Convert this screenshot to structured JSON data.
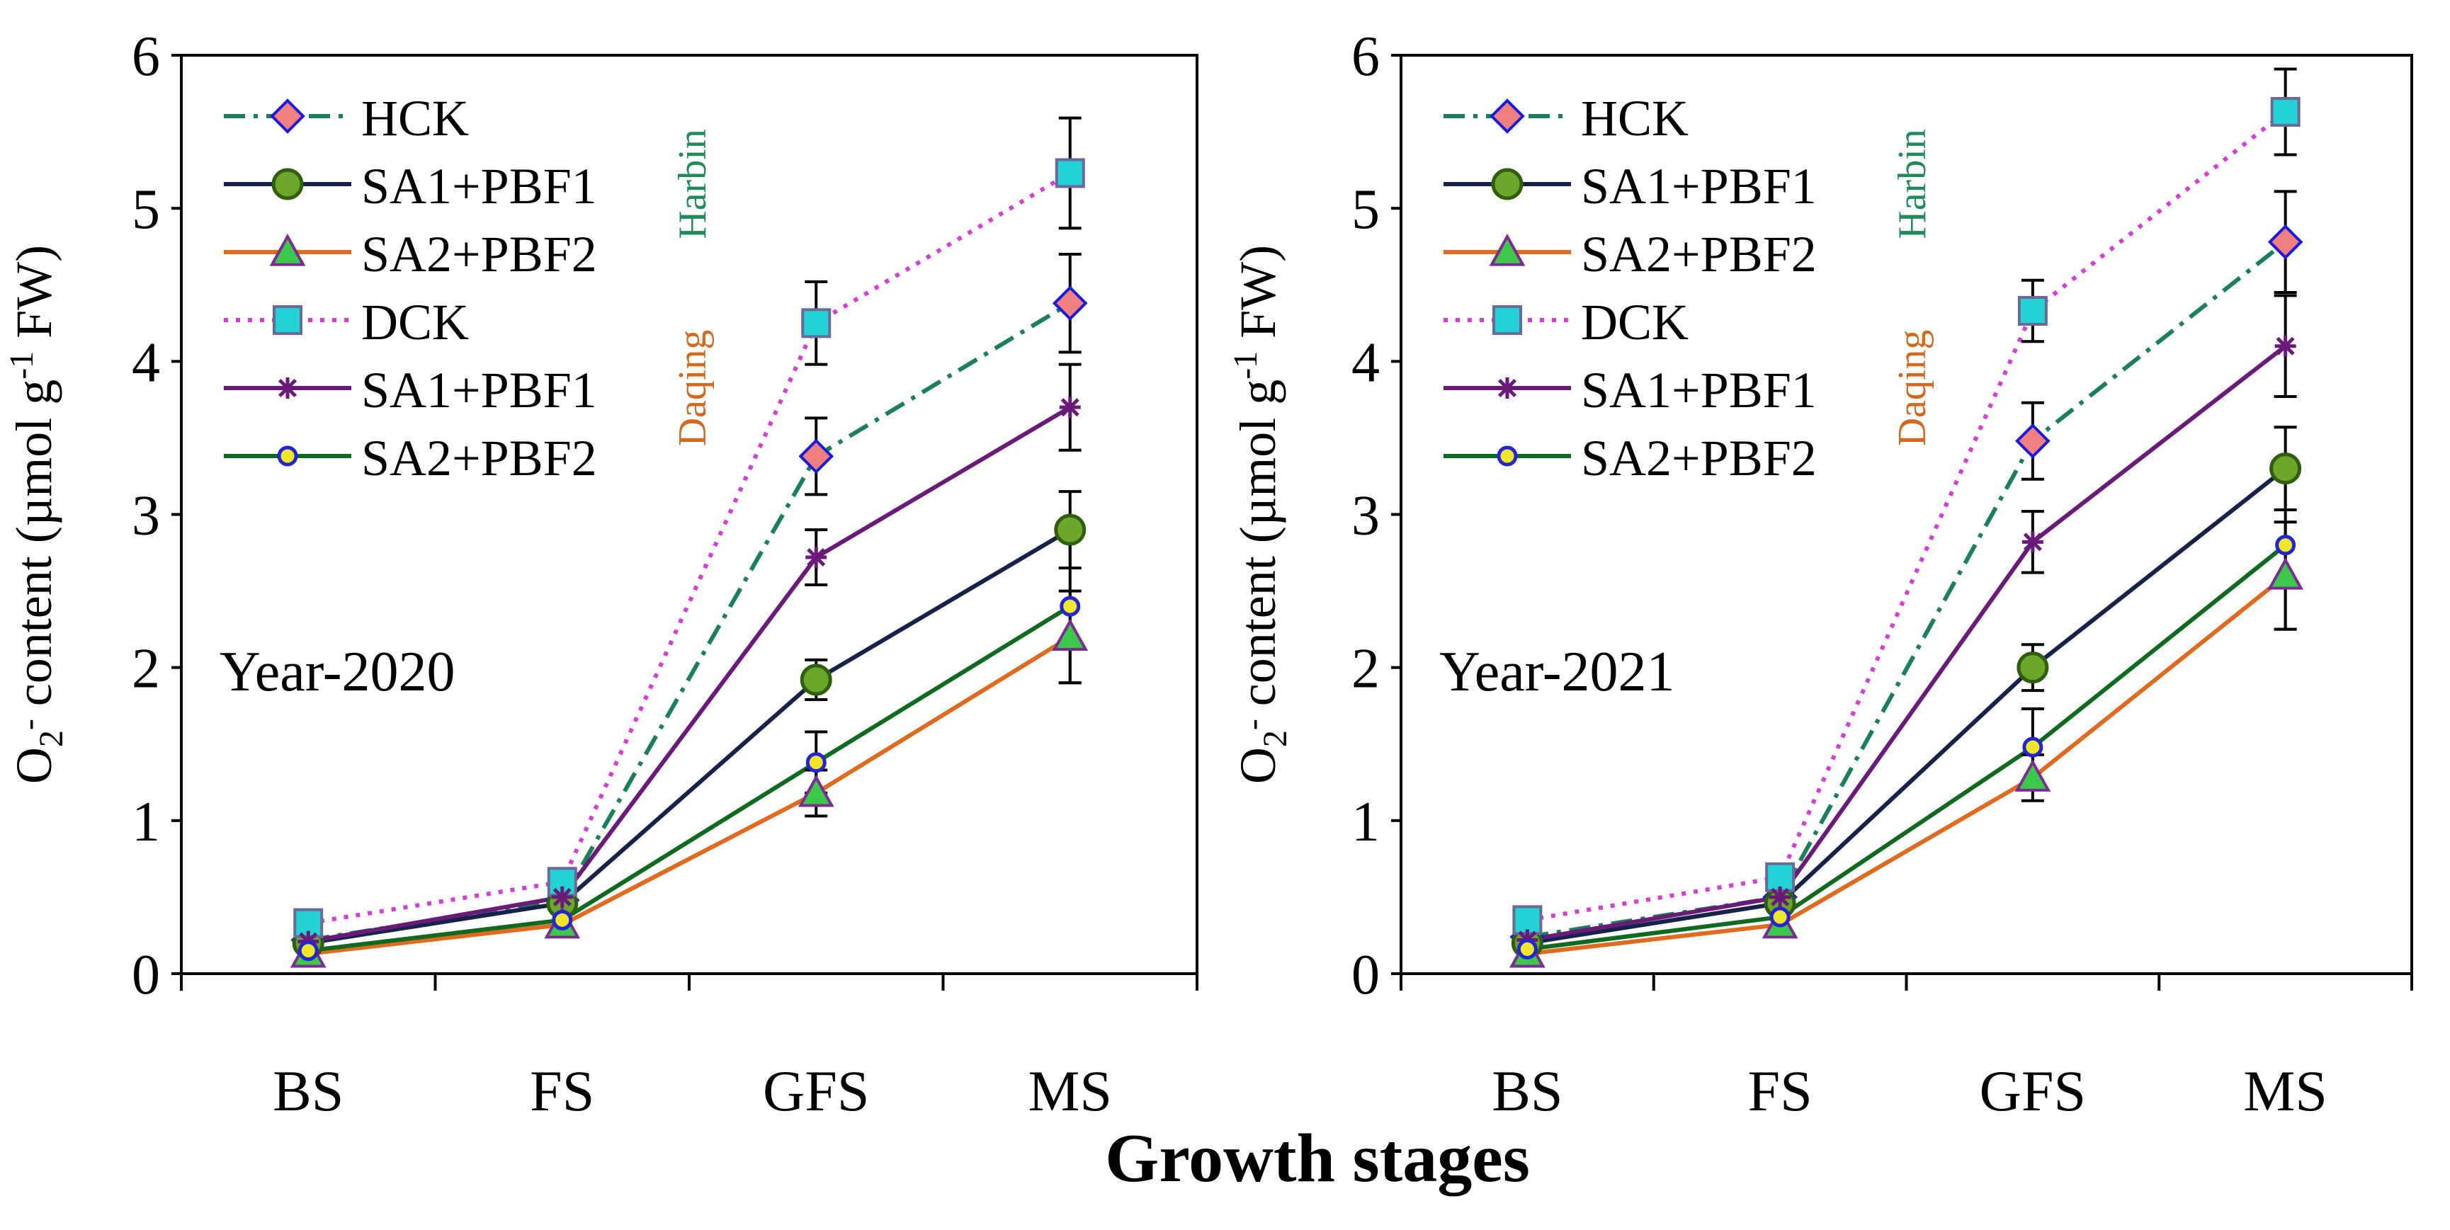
{
  "figure": {
    "xlabel": "Growth stages",
    "sites": [
      {
        "name": "Harbin",
        "color": "#1f8a5a"
      },
      {
        "name": "Daqing",
        "color": "#d2691e"
      }
    ]
  },
  "chart_data": [
    {
      "type": "line",
      "title": "Year-2020",
      "ylabel": "O2- content (µmol g-1 FW)",
      "categories": [
        "BS",
        "FS",
        "GFS",
        "MS"
      ],
      "ylim": [
        0,
        6
      ],
      "yticks": [
        0,
        1,
        2,
        3,
        4,
        5,
        6
      ],
      "series": [
        {
          "name": "HCK",
          "site": "Harbin",
          "values": [
            0.22,
            0.48,
            3.38,
            4.38
          ],
          "errors": [
            0.03,
            0.05,
            0.25,
            0.32
          ]
        },
        {
          "name": "SA1+PBF1",
          "site": "Harbin",
          "values": [
            0.2,
            0.46,
            1.92,
            2.9
          ],
          "errors": [
            0.03,
            0.05,
            0.13,
            0.25
          ]
        },
        {
          "name": "SA2+PBF2",
          "site": "Harbin",
          "values": [
            0.13,
            0.32,
            1.18,
            2.2
          ],
          "errors": [
            0.02,
            0.04,
            0.15,
            0.3
          ]
        },
        {
          "name": "DCK",
          "site": "Daqing",
          "values": [
            0.33,
            0.6,
            4.25,
            5.23
          ],
          "errors": [
            0.04,
            0.05,
            0.27,
            0.36
          ]
        },
        {
          "name": "SA1+PBF1",
          "site": "Daqing",
          "values": [
            0.21,
            0.5,
            2.72,
            3.7
          ],
          "errors": [
            0.03,
            0.05,
            0.18,
            0.28
          ]
        },
        {
          "name": "SA2+PBF2",
          "site": "Daqing",
          "values": [
            0.15,
            0.35,
            1.38,
            2.4
          ],
          "errors": [
            0.02,
            0.04,
            0.2,
            0.5
          ]
        }
      ]
    },
    {
      "type": "line",
      "title": "Year-2021",
      "ylabel": "O2- content (µmol g-1 FW)",
      "categories": [
        "BS",
        "FS",
        "GFS",
        "MS"
      ],
      "ylim": [
        0,
        6
      ],
      "yticks": [
        0,
        1,
        2,
        3,
        4,
        5,
        6
      ],
      "series": [
        {
          "name": "HCK",
          "site": "Harbin",
          "values": [
            0.24,
            0.5,
            3.48,
            4.78
          ],
          "errors": [
            0.03,
            0.05,
            0.25,
            0.33
          ]
        },
        {
          "name": "SA1+PBF1",
          "site": "Harbin",
          "values": [
            0.2,
            0.46,
            2.0,
            3.3
          ],
          "errors": [
            0.03,
            0.05,
            0.15,
            0.27
          ]
        },
        {
          "name": "SA2+PBF2",
          "site": "Harbin",
          "values": [
            0.13,
            0.32,
            1.28,
            2.6
          ],
          "errors": [
            0.02,
            0.04,
            0.15,
            0.35
          ]
        },
        {
          "name": "DCK",
          "site": "Daqing",
          "values": [
            0.35,
            0.63,
            4.33,
            5.63
          ],
          "errors": [
            0.04,
            0.05,
            0.2,
            0.28
          ]
        },
        {
          "name": "SA1+PBF1",
          "site": "Daqing",
          "values": [
            0.22,
            0.5,
            2.82,
            4.1
          ],
          "errors": [
            0.03,
            0.05,
            0.2,
            0.33
          ]
        },
        {
          "name": "SA2+PBF2",
          "site": "Daqing",
          "values": [
            0.16,
            0.37,
            1.48,
            2.8
          ],
          "errors": [
            0.02,
            0.04,
            0.25,
            0.55
          ]
        }
      ]
    }
  ]
}
